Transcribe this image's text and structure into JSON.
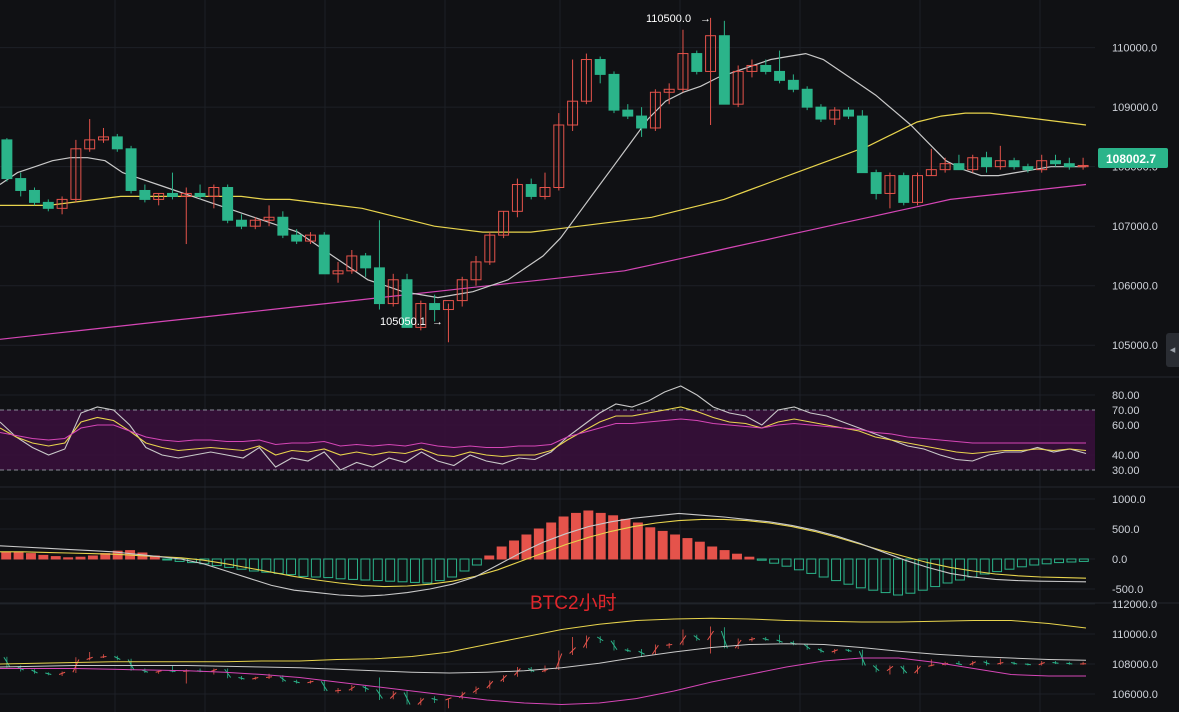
{
  "colors": {
    "background": "#101114",
    "grid": "#1d2026",
    "up": "#e5534b",
    "down": "#2bb48a",
    "ma_white": "#c9c9c9",
    "ma_yellow": "#e8d44d",
    "ma_magenta": "#d546b6",
    "rsi_band": "#3a0f3c",
    "axis_text": "#cfd3da",
    "watermark": "#e0262b"
  },
  "watermark": "BTC2小时",
  "price_labels": {
    "current": "108002.7",
    "high": "110500.0",
    "low": "105050.1"
  },
  "chart_data": [
    {
      "type": "candlestick",
      "panel": "main",
      "ylim": [
        104500,
        110800
      ],
      "yticks": [
        "110000.0",
        "109000.0",
        "108000.0",
        "107000.0",
        "106000.0",
        "105000.0"
      ],
      "ytick_values": [
        110000,
        109000,
        108000,
        107000,
        106000,
        105000
      ],
      "candles": [
        [
          108450,
          108480,
          107750,
          107800
        ],
        [
          107800,
          107900,
          107500,
          107600
        ],
        [
          107600,
          107650,
          107350,
          107400
        ],
        [
          107400,
          107450,
          107250,
          107300
        ],
        [
          107300,
          107500,
          107200,
          107450
        ],
        [
          107450,
          108450,
          107400,
          108300
        ],
        [
          108300,
          108800,
          108250,
          108450
        ],
        [
          108450,
          108650,
          108400,
          108500
        ],
        [
          108500,
          108550,
          108250,
          108300
        ],
        [
          108300,
          108350,
          107550,
          107600
        ],
        [
          107600,
          107700,
          107400,
          107450
        ],
        [
          107450,
          107550,
          107350,
          107550
        ],
        [
          107550,
          107900,
          107450,
          107500
        ],
        [
          107500,
          107650,
          106700,
          107550
        ],
        [
          107550,
          107700,
          107450,
          107500
        ],
        [
          107500,
          107700,
          107300,
          107650
        ],
        [
          107650,
          107700,
          107050,
          107100
        ],
        [
          107100,
          107200,
          106950,
          107000
        ],
        [
          107000,
          107150,
          106950,
          107100
        ],
        [
          107100,
          107350,
          107000,
          107150
        ],
        [
          107150,
          107250,
          106800,
          106850
        ],
        [
          106850,
          106950,
          106700,
          106750
        ],
        [
          106750,
          106900,
          106700,
          106850
        ],
        [
          106850,
          106900,
          106200,
          106200
        ],
        [
          106200,
          106400,
          106050,
          106250
        ],
        [
          106250,
          106600,
          106200,
          106500
        ],
        [
          106500,
          106550,
          106150,
          106300
        ],
        [
          106300,
          107100,
          105600,
          105700
        ],
        [
          105700,
          106200,
          105650,
          106100
        ],
        [
          106100,
          106200,
          105300,
          105300
        ],
        [
          105300,
          105750,
          105250,
          105700
        ],
        [
          105700,
          105850,
          105400,
          105600
        ],
        [
          105600,
          105700,
          105050,
          105750
        ],
        [
          105750,
          106150,
          105650,
          106100
        ],
        [
          106100,
          106500,
          106000,
          106400
        ],
        [
          106400,
          106900,
          106350,
          106850
        ],
        [
          106850,
          107250,
          106800,
          107250
        ],
        [
          107250,
          107800,
          107150,
          107700
        ],
        [
          107700,
          107800,
          107450,
          107500
        ],
        [
          107500,
          107900,
          107450,
          107650
        ],
        [
          107650,
          108900,
          107600,
          108700
        ],
        [
          108700,
          109800,
          108600,
          109100
        ],
        [
          109100,
          109900,
          109050,
          109800
        ],
        [
          109800,
          109850,
          109400,
          109550
        ],
        [
          109550,
          109600,
          108900,
          108950
        ],
        [
          108950,
          109050,
          108800,
          108850
        ],
        [
          108850,
          109000,
          108500,
          108650
        ],
        [
          108650,
          109300,
          108600,
          109250
        ],
        [
          109250,
          109400,
          109050,
          109300
        ],
        [
          109300,
          110300,
          109250,
          109900
        ],
        [
          109900,
          109950,
          109550,
          109600
        ],
        [
          109600,
          110500,
          108700,
          110200
        ],
        [
          110200,
          110450,
          109050,
          109050
        ],
        [
          109050,
          109700,
          109000,
          109600
        ],
        [
          109600,
          109800,
          109500,
          109700
        ],
        [
          109700,
          109800,
          109550,
          109600
        ],
        [
          109600,
          109950,
          109400,
          109450
        ],
        [
          109450,
          109550,
          109250,
          109300
        ],
        [
          109300,
          109350,
          108950,
          109000
        ],
        [
          109000,
          109050,
          108750,
          108800
        ],
        [
          108800,
          109000,
          108700,
          108950
        ],
        [
          108950,
          109000,
          108800,
          108850
        ],
        [
          108850,
          108950,
          107900,
          107900
        ],
        [
          107900,
          107950,
          107450,
          107550
        ],
        [
          107550,
          107900,
          107300,
          107850
        ],
        [
          107850,
          107900,
          107350,
          107400
        ],
        [
          107400,
          107900,
          107350,
          107850
        ],
        [
          107850,
          108300,
          107850,
          107950
        ],
        [
          107950,
          108150,
          107900,
          108050
        ],
        [
          108050,
          108200,
          107950,
          107950
        ],
        [
          107950,
          108200,
          107900,
          108150
        ],
        [
          108150,
          108250,
          107900,
          108000
        ],
        [
          108000,
          108350,
          107950,
          108100
        ],
        [
          108100,
          108150,
          107950,
          108000
        ],
        [
          108000,
          108050,
          107900,
          107950
        ],
        [
          107950,
          108200,
          107900,
          108100
        ],
        [
          108100,
          108200,
          108000,
          108050
        ],
        [
          108050,
          108150,
          107950,
          108000
        ],
        [
          108000,
          108150,
          107950,
          108020
        ]
      ],
      "ma_white": [
        107700,
        107900,
        108000,
        108100,
        108150,
        108150,
        108100,
        107900,
        107800,
        107700,
        107600,
        107500,
        107400,
        107300,
        107200,
        107100,
        107000,
        106900,
        106700,
        106500,
        106300,
        106100,
        106000,
        105900,
        105850,
        105800,
        105850,
        105900,
        106000,
        106100,
        106300,
        106500,
        106800,
        107200,
        107600,
        108000,
        108400,
        108800,
        109100,
        109250,
        109350,
        109500,
        109600,
        109700,
        109800,
        109850,
        109900,
        109800,
        109600,
        109400,
        109200,
        108950,
        108700,
        108400,
        108100,
        107950,
        107850,
        107850,
        107900,
        107950,
        108000,
        108000,
        108000
      ],
      "ma_yellow": [
        107350,
        107350,
        107350,
        107400,
        107450,
        107500,
        107500,
        107500,
        107500,
        107500,
        107500,
        107450,
        107450,
        107400,
        107350,
        107300,
        107200,
        107100,
        107000,
        106950,
        106900,
        106900,
        106900,
        106950,
        107000,
        107050,
        107100,
        107150,
        107250,
        107350,
        107450,
        107600,
        107750,
        107900,
        108050,
        108200,
        108350,
        108550,
        108750,
        108850,
        108900,
        108900,
        108850,
        108800,
        108750,
        108700
      ],
      "ma_magenta": [
        105100,
        105150,
        105200,
        105250,
        105300,
        105350,
        105400,
        105450,
        105500,
        105550,
        105600,
        105650,
        105700,
        105750,
        105800,
        105850,
        105900,
        105950,
        106000,
        106050,
        106100,
        106150,
        106200,
        106250,
        106350,
        106450,
        106550,
        106650,
        106750,
        106850,
        106950,
        107050,
        107150,
        107250,
        107350,
        107450,
        107500,
        107550,
        107600,
        107650,
        107700
      ]
    },
    {
      "type": "line",
      "panel": "rsi",
      "ylim": [
        20,
        90
      ],
      "yticks": [
        "80.00",
        "70.00",
        "60.00",
        "40.00",
        "30.00"
      ],
      "ytick_values": [
        80,
        70,
        60,
        40,
        30
      ],
      "band": [
        30,
        70
      ],
      "series": [
        {
          "values": [
            62,
            52,
            45,
            40,
            44,
            68,
            72,
            70,
            60,
            45,
            40,
            38,
            40,
            42,
            40,
            38,
            45,
            32,
            38,
            36,
            42,
            30,
            35,
            32,
            38,
            35,
            42,
            36,
            33,
            40,
            36,
            34,
            38,
            37,
            42,
            52,
            60,
            68,
            74,
            72,
            76,
            82,
            86,
            80,
            72,
            68,
            66,
            60,
            70,
            72,
            68,
            66,
            62,
            58,
            54,
            50,
            46,
            44,
            40,
            37,
            36,
            40,
            42,
            42,
            45,
            42,
            44,
            41
          ]
        },
        {
          "values": [
            58,
            52,
            48,
            46,
            48,
            62,
            65,
            63,
            56,
            48,
            45,
            43,
            44,
            45,
            44,
            43,
            46,
            40,
            43,
            42,
            44,
            40,
            42,
            40,
            42,
            41,
            44,
            40,
            39,
            42,
            40,
            39,
            40,
            40,
            43,
            50,
            56,
            62,
            66,
            66,
            68,
            70,
            72,
            69,
            65,
            62,
            61,
            58,
            62,
            64,
            62,
            60,
            58,
            56,
            52,
            50,
            48,
            46,
            44,
            42,
            41,
            42,
            43,
            43,
            44,
            43,
            44,
            43
          ]
        },
        {
          "values": [
            55,
            53,
            51,
            50,
            51,
            58,
            60,
            60,
            56,
            52,
            50,
            49,
            50,
            50,
            49,
            49,
            50,
            47,
            48,
            48,
            49,
            46,
            47,
            46,
            47,
            46,
            48,
            46,
            45,
            46,
            45,
            45,
            46,
            46,
            47,
            52,
            55,
            58,
            61,
            61,
            62,
            63,
            64,
            63,
            61,
            60,
            59,
            58,
            60,
            61,
            60,
            59,
            58,
            57,
            55,
            54,
            52,
            51,
            50,
            49,
            48,
            48,
            48,
            48,
            48,
            48,
            48,
            48
          ]
        }
      ]
    },
    {
      "type": "bar",
      "panel": "macd",
      "ylim": [
        -650,
        1150
      ],
      "yticks": [
        "1000.0",
        "500.0",
        "0.0",
        "-500.0"
      ],
      "ytick_values": [
        1000,
        500,
        0,
        -500
      ],
      "histogram": [
        110,
        110,
        90,
        60,
        40,
        20,
        30,
        50,
        90,
        130,
        140,
        100,
        50,
        -10,
        -40,
        -60,
        -80,
        -110,
        -140,
        -170,
        -200,
        -220,
        -240,
        -260,
        -290,
        -300,
        -310,
        -330,
        -340,
        -350,
        -360,
        -370,
        -380,
        -390,
        -400,
        -360,
        -300,
        -200,
        -100,
        50,
        200,
        300,
        400,
        500,
        600,
        700,
        760,
        800,
        760,
        720,
        660,
        600,
        520,
        460,
        400,
        340,
        280,
        200,
        140,
        80,
        30,
        -20,
        -70,
        -120,
        -180,
        -240,
        -300,
        -360,
        -420,
        -480,
        -520,
        -560,
        -600,
        -570,
        -520,
        -460,
        -400,
        -350,
        -300,
        -250,
        -210,
        -170,
        -130,
        -100,
        -80,
        -60,
        -50,
        -40
      ],
      "series": [
        {
          "values": [
            220,
            200,
            180,
            160,
            140,
            120,
            80,
            40,
            0,
            -80,
            -200,
            -320,
            -440,
            -520,
            -560,
            -600,
            -620,
            -600,
            -560,
            -500,
            -420,
            -300,
            -100,
            100,
            280,
            420,
            540,
            620,
            680,
            720,
            760,
            730,
            700,
            660,
            620,
            560,
            480,
            380,
            260,
            120,
            -20,
            -140,
            -240,
            -300,
            -340,
            -360,
            -370,
            -375,
            -380
          ]
        },
        {
          "values": [
            120,
            120,
            110,
            100,
            90,
            80,
            60,
            40,
            20,
            -20,
            -80,
            -150,
            -220,
            -290,
            -350,
            -400,
            -440,
            -460,
            -450,
            -420,
            -370,
            -290,
            -180,
            -40,
            100,
            240,
            360,
            460,
            540,
            600,
            640,
            660,
            660,
            640,
            600,
            540,
            460,
            360,
            250,
            140,
            40,
            -60,
            -140,
            -200,
            -250,
            -280,
            -300,
            -310,
            -320
          ]
        }
      ]
    },
    {
      "type": "candlestick",
      "panel": "mini",
      "ylim": [
        104800,
        112400
      ],
      "yticks": [
        "112000.0",
        "110000.0",
        "108000.0",
        "106000.0"
      ],
      "ytick_values": [
        112000,
        110000,
        108000,
        106000
      ],
      "ma_yellow": [
        108000,
        108050,
        108100,
        108150,
        108150,
        108150,
        108150,
        108200,
        108200,
        108300,
        108350,
        108500,
        108800,
        109300,
        109800,
        110300,
        110650,
        110900,
        111000,
        111050,
        111000,
        110900,
        110850,
        110800,
        110800,
        110850,
        110900,
        110900,
        110700,
        110400
      ],
      "ma_white": [
        107800,
        107850,
        107900,
        107900,
        107900,
        107900,
        107850,
        107800,
        107750,
        107650,
        107550,
        107450,
        107400,
        107450,
        107550,
        107750,
        108050,
        108450,
        108800,
        109100,
        109300,
        109350,
        109300,
        109100,
        108850,
        108650,
        108500,
        108400,
        108300,
        108250
      ],
      "ma_magenta": [
        107700,
        107700,
        107700,
        107650,
        107600,
        107550,
        107450,
        107300,
        107100,
        106800,
        106500,
        106200,
        105900,
        105600,
        105400,
        105300,
        105400,
        105700,
        106200,
        106800,
        107300,
        107800,
        108200,
        108400,
        108400,
        108100,
        107700,
        107300,
        107200,
        107200
      ]
    }
  ]
}
